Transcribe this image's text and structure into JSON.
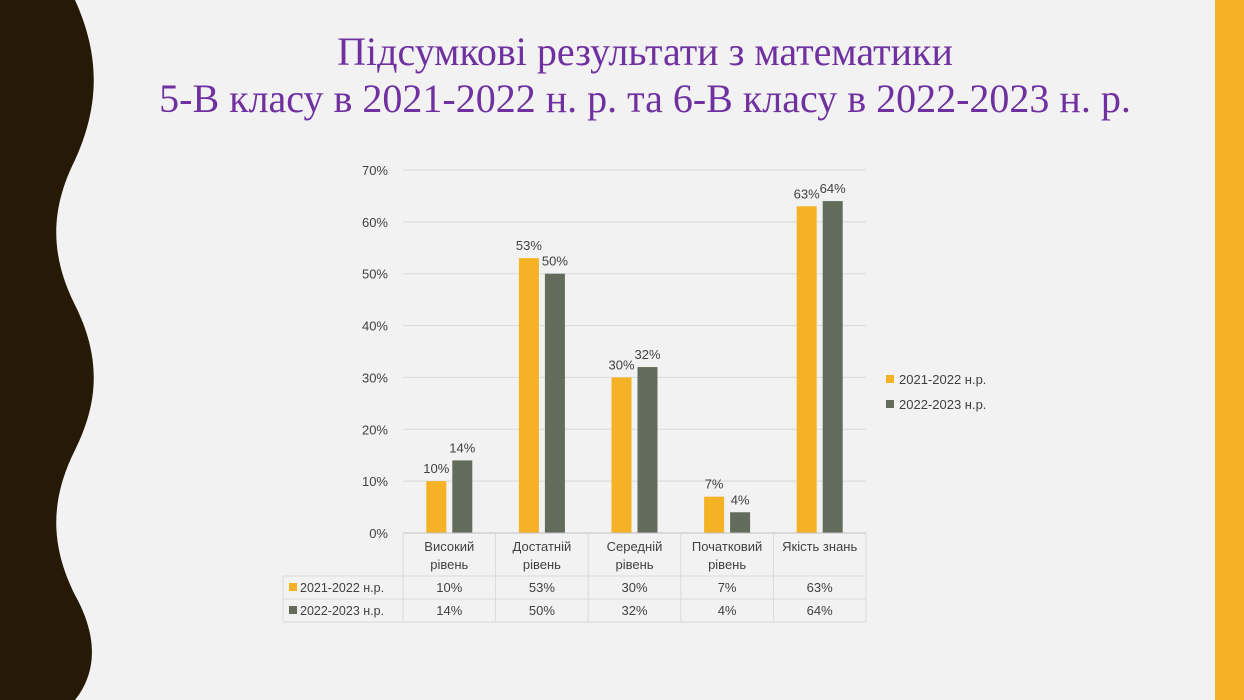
{
  "slide": {
    "title_line1": "Підсумкові результати з математики",
    "title_line2": "5-В класу в 2021-2022 н. р. та 6-В класу в 2022-2023 н. р.",
    "accent_color": "#f5b225",
    "title_color": "#7030a0",
    "wave_color": "#261a06"
  },
  "chart_data": {
    "type": "bar",
    "title": "",
    "xlabel": "",
    "ylabel": "",
    "ylim": [
      0,
      70
    ],
    "y_ticks": [
      "0%",
      "10%",
      "20%",
      "30%",
      "40%",
      "50%",
      "60%",
      "70%"
    ],
    "grid": true,
    "legend_position": "right",
    "categories": [
      [
        "Високий",
        "рівень"
      ],
      [
        "Достатній",
        "рівень"
      ],
      [
        "Середній",
        "рівень"
      ],
      [
        "Початковий",
        "рівень"
      ],
      [
        "Якість знань"
      ]
    ],
    "series": [
      {
        "name": "2021-2022 н.р.",
        "color": "#f5b225",
        "values": [
          10,
          53,
          30,
          7,
          63
        ],
        "labels": [
          "10%",
          "53%",
          "30%",
          "7%",
          "63%"
        ]
      },
      {
        "name": "2022-2023 н.р.",
        "color": "#636b5a",
        "values": [
          14,
          50,
          32,
          4,
          64
        ],
        "labels": [
          "14%",
          "50%",
          "32%",
          "4%",
          "64%"
        ]
      }
    ],
    "data_table": true
  }
}
